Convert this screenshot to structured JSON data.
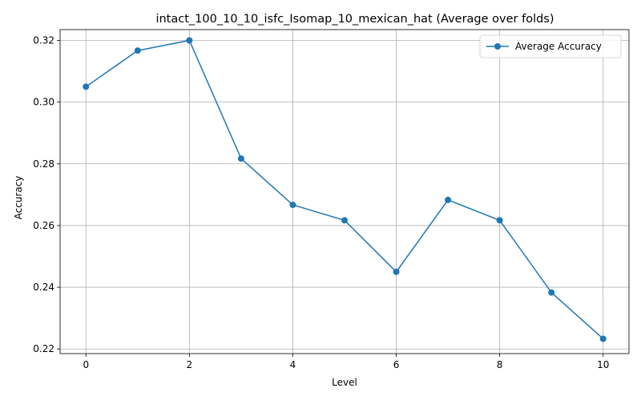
{
  "chart_data": {
    "type": "line",
    "title": "intact_100_10_10_isfc_Isomap_10_mexican_hat (Average over folds)",
    "xlabel": "Level",
    "ylabel": "Accuracy",
    "xlim": [
      -0.5,
      10.5
    ],
    "ylim": [
      0.2185,
      0.3235
    ],
    "x_ticks": [
      0,
      2,
      4,
      6,
      8,
      10
    ],
    "y_ticks": [
      0.22,
      0.24,
      0.26,
      0.28,
      0.3,
      0.32
    ],
    "x_tick_labels": [
      "0",
      "2",
      "4",
      "6",
      "8",
      "10"
    ],
    "y_tick_labels": [
      "0.22",
      "0.24",
      "0.26",
      "0.28",
      "0.30",
      "0.32"
    ],
    "grid": true,
    "legend_position": "top-right",
    "x": [
      0,
      1,
      2,
      3,
      4,
      5,
      6,
      7,
      8,
      9,
      10
    ],
    "series": [
      {
        "name": "Average Accuracy",
        "color": "#1f77b4",
        "marker": "circle",
        "values": [
          0.305,
          0.3167,
          0.32,
          0.2817,
          0.2667,
          0.2617,
          0.245,
          0.2683,
          0.2617,
          0.2383,
          0.2233
        ]
      }
    ]
  }
}
